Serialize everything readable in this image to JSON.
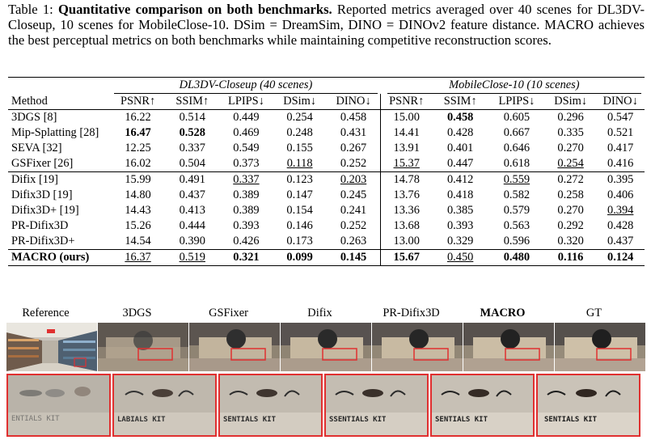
{
  "caption": {
    "label": "Table 1:",
    "bold_title": "Quantitative comparison on both benchmarks.",
    "body": "Reported metrics averaged over 40 scenes for DL3DV-Closeup, 10 scenes for MobileClose-10. DSim = DreamSim, DINO = DINOv2 feature distance. MACRO achieves the best perceptual metrics on both benchmarks while maintaining competitive reconstruction scores."
  },
  "table": {
    "group_headers": [
      "DL3DV-Closeup (40 scenes)",
      "MobileClose-10 (10 scenes)"
    ],
    "method_header": "Method",
    "metric_headers": [
      "PSNR↑",
      "SSIM↑",
      "LPIPS↓",
      "DSim↓",
      "DINO↓",
      "PSNR↑",
      "SSIM↑",
      "LPIPS↓",
      "DSim↓",
      "DINO↓"
    ],
    "blocks": [
      [
        {
          "method": "3DGS [8]",
          "values": [
            "16.22",
            "0.514",
            "0.449",
            "0.254",
            "0.458",
            "15.00",
            "0.458",
            "0.605",
            "0.296",
            "0.547"
          ],
          "bold": [
            6
          ],
          "underline": []
        },
        {
          "method": "Mip-Splatting [28]",
          "values": [
            "16.47",
            "0.528",
            "0.469",
            "0.248",
            "0.431",
            "14.41",
            "0.428",
            "0.667",
            "0.335",
            "0.521"
          ],
          "bold": [
            0,
            1
          ],
          "underline": []
        },
        {
          "method": "SEVA [32]",
          "values": [
            "12.25",
            "0.337",
            "0.549",
            "0.155",
            "0.267",
            "13.91",
            "0.401",
            "0.646",
            "0.270",
            "0.417"
          ],
          "bold": [],
          "underline": []
        },
        {
          "method": "GSFixer [26]",
          "values": [
            "16.02",
            "0.504",
            "0.373",
            "0.118",
            "0.252",
            "15.37",
            "0.447",
            "0.618",
            "0.254",
            "0.416"
          ],
          "bold": [],
          "underline": [
            3,
            5,
            8
          ]
        }
      ],
      [
        {
          "method": "Difix [19]",
          "values": [
            "15.99",
            "0.491",
            "0.337",
            "0.123",
            "0.203",
            "14.78",
            "0.412",
            "0.559",
            "0.272",
            "0.395"
          ],
          "bold": [],
          "underline": [
            2,
            4,
            7
          ]
        },
        {
          "method": "Difix3D [19]",
          "values": [
            "14.80",
            "0.437",
            "0.389",
            "0.147",
            "0.245",
            "13.76",
            "0.418",
            "0.582",
            "0.258",
            "0.406"
          ],
          "bold": [],
          "underline": []
        },
        {
          "method": "Difix3D+ [19]",
          "values": [
            "14.43",
            "0.413",
            "0.389",
            "0.154",
            "0.241",
            "13.36",
            "0.385",
            "0.579",
            "0.270",
            "0.394"
          ],
          "bold": [],
          "underline": [
            9
          ]
        },
        {
          "method": "PR-Difix3D",
          "values": [
            "15.26",
            "0.444",
            "0.393",
            "0.146",
            "0.252",
            "13.68",
            "0.393",
            "0.563",
            "0.292",
            "0.428"
          ],
          "bold": [],
          "underline": []
        },
        {
          "method": "PR-Difix3D+",
          "values": [
            "14.54",
            "0.390",
            "0.426",
            "0.173",
            "0.263",
            "13.00",
            "0.329",
            "0.596",
            "0.320",
            "0.437"
          ],
          "bold": [],
          "underline": []
        }
      ]
    ],
    "ours": {
      "method": "MACRO (ours)",
      "values": [
        "16.37",
        "0.519",
        "0.321",
        "0.099",
        "0.145",
        "15.67",
        "0.450",
        "0.480",
        "0.116",
        "0.124"
      ],
      "bold": [
        2,
        3,
        4,
        5,
        7,
        8,
        9
      ],
      "underline": [
        0,
        1,
        6
      ]
    }
  },
  "figure": {
    "labels": [
      "Reference",
      "3DGS",
      "GSFixer",
      "Difix",
      "PR-Difix3D",
      "MACRO",
      "GT"
    ],
    "bold_label_index": 5,
    "crop_texts": [
      "ENTIALS KIT",
      "LABIALS KIT",
      "SENTIALS KIT",
      "SSENTIALS KIT",
      "SENTIALS KIT",
      "SENTIALS KIT"
    ],
    "colors": {
      "highlight_border": "#e03030"
    }
  }
}
